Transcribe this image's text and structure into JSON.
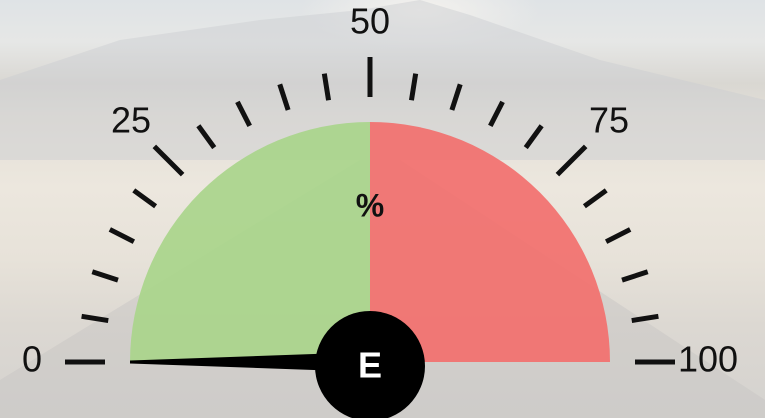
{
  "chart_data": {
    "type": "gauge",
    "xlim": [
      0,
      100
    ],
    "xticks": [
      0,
      25,
      50,
      75,
      100
    ],
    "minor_ticks": [
      5,
      10,
      15,
      20,
      30,
      35,
      40,
      45,
      55,
      60,
      65,
      70,
      80,
      85,
      90,
      95
    ],
    "bands": [
      {
        "from": 0,
        "to": 50,
        "color": "#a9d58b"
      },
      {
        "from": 50,
        "to": 100,
        "color": "#f2706e"
      }
    ],
    "value": 0,
    "unit": "%",
    "hub_label": "E"
  }
}
